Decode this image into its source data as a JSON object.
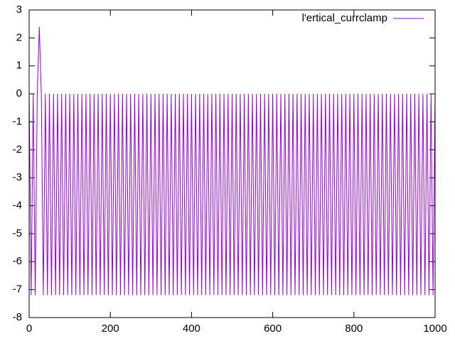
{
  "chart_data": {
    "type": "line",
    "series": [
      {
        "name": "l'ertical_currclamp",
        "color": "#9400d3",
        "x": [
          0,
          5,
          10,
          15,
          20,
          25,
          30,
          35,
          40,
          45,
          50,
          55,
          60,
          65,
          70,
          75,
          80,
          85,
          90,
          95,
          100,
          105,
          110,
          115,
          120,
          125,
          130,
          135,
          140,
          145,
          150,
          155,
          160,
          165,
          170,
          175,
          180,
          185,
          190,
          195,
          200,
          205,
          210,
          215,
          220,
          225,
          230,
          235,
          240,
          245,
          250,
          255,
          260,
          265,
          270,
          275,
          280,
          285,
          290,
          295,
          300,
          305,
          310,
          315,
          320,
          325,
          330,
          335,
          340,
          345,
          350,
          355,
          360,
          365,
          370,
          375,
          380,
          385,
          390,
          395,
          400,
          405,
          410,
          415,
          420,
          425,
          430,
          435,
          440,
          445,
          450,
          455,
          460,
          465,
          470,
          475,
          480,
          485,
          490,
          495,
          500,
          505,
          510,
          515,
          520,
          525,
          530,
          535,
          540,
          545,
          550,
          555,
          560,
          565,
          570,
          575,
          580,
          585,
          590,
          595,
          600,
          605,
          610,
          615,
          620,
          625,
          630,
          635,
          640,
          645,
          650,
          655,
          660,
          665,
          670,
          675,
          680,
          685,
          690,
          695,
          700,
          705,
          710,
          715,
          720,
          725,
          730,
          735,
          740,
          745,
          750,
          755,
          760,
          765,
          770,
          775,
          780,
          785,
          790,
          795,
          800,
          805,
          810,
          815,
          820,
          825,
          830,
          835,
          840,
          845,
          850,
          855,
          860,
          865,
          870,
          875,
          880,
          885,
          890,
          895,
          900,
          905,
          910,
          915,
          920,
          925,
          930,
          935,
          940,
          945,
          950,
          955,
          960,
          965,
          970,
          975,
          980,
          985,
          990,
          995,
          1000
        ],
        "values": [
          0,
          -7.2,
          0,
          -7.2,
          0,
          2.4,
          0,
          -7.2,
          0,
          -7.2,
          0,
          -7.2,
          0,
          -7.2,
          0,
          -7.2,
          0,
          -7.2,
          0,
          -7.2,
          0,
          -7.2,
          0,
          -7.2,
          0,
          -7.2,
          0,
          -7.2,
          0,
          -7.2,
          0,
          -7.2,
          0,
          -7.2,
          0,
          -7.2,
          0,
          -7.2,
          0,
          -7.2,
          0,
          -7.2,
          0,
          -7.2,
          0,
          -7.2,
          0,
          -7.2,
          0,
          -7.2,
          0,
          -7.2,
          0,
          -7.2,
          0,
          -7.2,
          0,
          -7.2,
          0,
          -7.2,
          0,
          -7.2,
          0,
          -7.2,
          0,
          -7.2,
          0,
          -7.2,
          0,
          -7.2,
          0,
          -7.2,
          0,
          -7.2,
          0,
          -7.2,
          0,
          -7.2,
          0,
          -7.2,
          0,
          -7.2,
          0,
          -7.2,
          0,
          -7.2,
          0,
          -7.2,
          0,
          -7.2,
          0,
          -7.2,
          0,
          -7.2,
          0,
          -7.2,
          0,
          -7.2,
          0,
          -7.2,
          0,
          -7.2,
          0,
          -7.2,
          0,
          -7.2,
          0,
          -7.2,
          0,
          -7.2,
          0,
          -7.2,
          0,
          -7.2,
          0,
          -7.2,
          0,
          -7.2,
          0,
          -7.2,
          0,
          -7.2,
          0,
          -7.2,
          0,
          -7.2,
          0,
          -7.2,
          0,
          -7.2,
          0,
          -7.2,
          0,
          -7.2,
          0,
          -7.2,
          0,
          -7.2,
          0,
          -7.2,
          0,
          -7.2,
          0,
          -7.2,
          0,
          -7.2,
          0,
          -7.2,
          0,
          -7.2,
          0,
          -7.2,
          0,
          -7.2,
          0,
          -7.2,
          0,
          -7.2,
          0,
          -7.2,
          0,
          -7.2,
          0,
          -7.2,
          0,
          -7.2,
          0,
          -7.2,
          0,
          -7.2,
          0,
          -7.2,
          0,
          -7.2,
          0,
          -7.2,
          0,
          -7.2,
          0,
          -7.2,
          0,
          -7.2,
          0,
          -7.2,
          0,
          -7.2,
          0,
          -7.2,
          0,
          -7.2,
          0,
          -7.2,
          0,
          -7.2,
          0,
          -7.2,
          0,
          -7.2,
          0,
          -7.2,
          0
        ]
      }
    ],
    "xlim": [
      0,
      1000
    ],
    "xticks": [
      0,
      200,
      400,
      600,
      800,
      1000
    ],
    "ylim": [
      -8,
      3
    ],
    "yticks": [
      -8,
      -7,
      -6,
      -5,
      -4,
      -3,
      -2,
      -1,
      0,
      1,
      2,
      3
    ],
    "legend": "top-right"
  }
}
